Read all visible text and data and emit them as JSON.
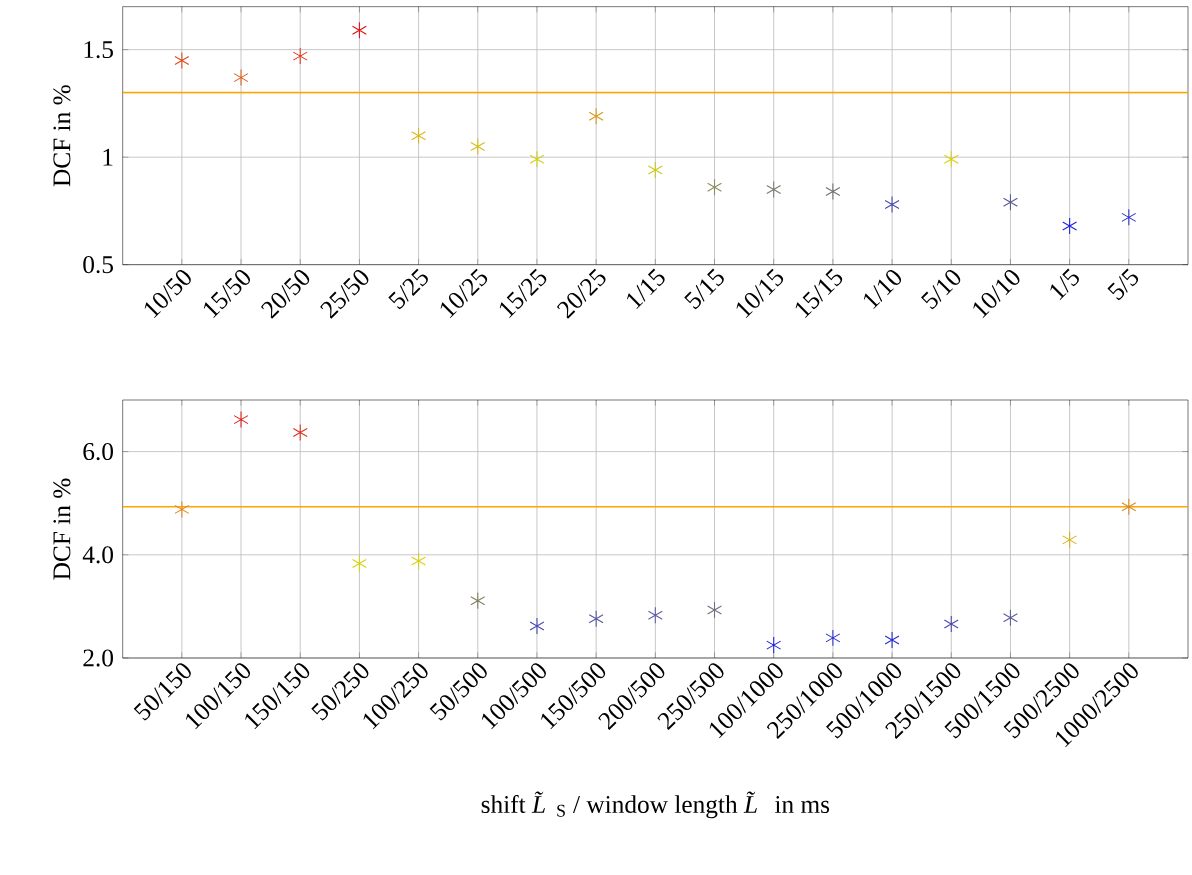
{
  "chart_data": [
    {
      "type": "scatter",
      "ylabel": "DCF in %",
      "categories": [
        "10/50",
        "15/50",
        "20/50",
        "25/50",
        "5/25",
        "10/25",
        "15/25",
        "20/25",
        "1/15",
        "5/15",
        "10/15",
        "15/15",
        "1/10",
        "5/10",
        "10/10",
        "1/5",
        "5/5"
      ],
      "values": [
        1.45,
        1.37,
        1.47,
        1.59,
        1.1,
        1.05,
        0.99,
        1.19,
        0.94,
        0.86,
        0.85,
        0.84,
        0.78,
        0.99,
        0.79,
        0.68,
        0.72
      ],
      "colors": [
        "#e04a1f",
        "#e0601f",
        "#e03a20",
        "#e01010",
        "#d8b818",
        "#d4c018",
        "#d0d020",
        "#d89a18",
        "#c8c820",
        "#8c8c60",
        "#7c7c70",
        "#707070",
        "#4848b0",
        "#d8d010",
        "#5a5a90",
        "#2020e0",
        "#3434c8"
      ],
      "ylim": [
        0.5,
        1.7
      ],
      "yticks": [
        0.5,
        1,
        1.5
      ],
      "ref_lines": [
        {
          "axis": "y",
          "value": 1.3,
          "color": "#ffa500"
        }
      ],
      "grid": true,
      "marker": "cross"
    },
    {
      "type": "scatter",
      "ylabel": "DCF in %",
      "xlabel": "shift *L̃*$_{S}$ / window length *L̃* in ms",
      "categories": [
        "50/150",
        "100/150",
        "150/150",
        "50/250",
        "100/250",
        "50/500",
        "100/500",
        "150/500",
        "200/500",
        "250/500",
        "100/1000",
        "250/1000",
        "500/1000",
        "250/1500",
        "500/1500",
        "500/2500",
        "1000/2500"
      ],
      "values": [
        4.88,
        6.62,
        6.37,
        3.83,
        3.88,
        3.11,
        2.62,
        2.76,
        2.83,
        2.93,
        2.25,
        2.39,
        2.35,
        2.66,
        2.78,
        4.29,
        4.93
      ],
      "colors": [
        "#e08820",
        "#e02020",
        "#e03020",
        "#d8d010",
        "#d8d010",
        "#808060",
        "#4848b8",
        "#5858a0",
        "#6060a0",
        "#707080",
        "#2020e0",
        "#3030d0",
        "#2828d8",
        "#4848b0",
        "#5c5c98",
        "#d8b020",
        "#d88820"
      ],
      "ylim": [
        2,
        7
      ],
      "yticks": [
        {
          "value": 2,
          "label": "2.0"
        },
        {
          "value": 4,
          "label": "4.0"
        },
        {
          "value": 6,
          "label": "6.0"
        }
      ],
      "ref_lines": [
        {
          "axis": "y",
          "value": 4.93,
          "color": "#ffa500"
        }
      ],
      "grid": true,
      "marker": "cross"
    }
  ]
}
